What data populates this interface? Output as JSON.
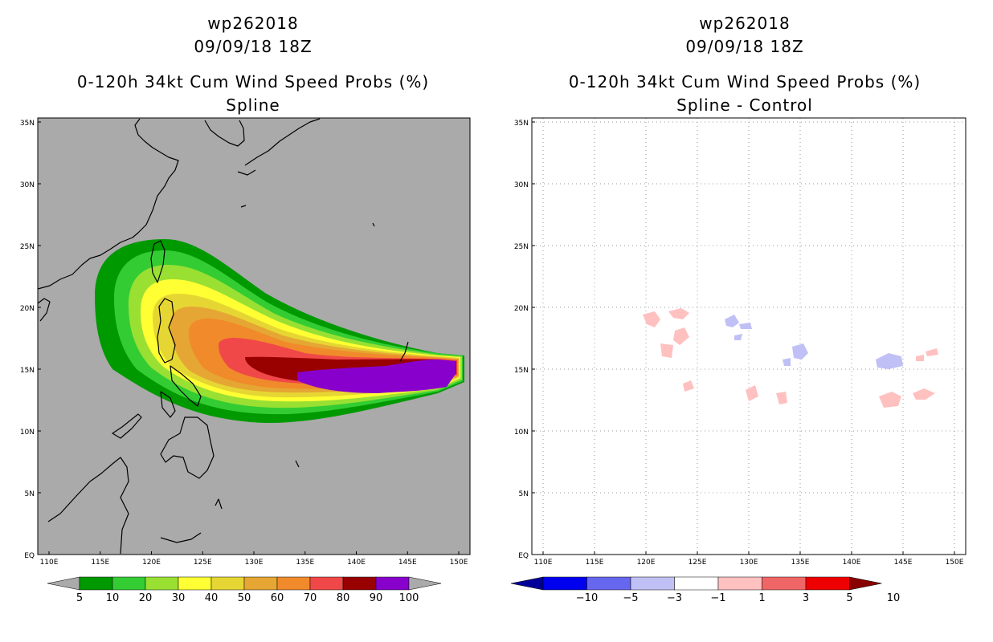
{
  "left": {
    "storm_id": "wp262018",
    "datetime": "09/09/18 18Z",
    "product": "0-120h 34kt Cum Wind Speed Probs (%)",
    "subtitle": "Spline",
    "legend_values": [
      "5",
      "10",
      "20",
      "30",
      "40",
      "50",
      "60",
      "70",
      "80",
      "90",
      "100"
    ],
    "legend_colors": [
      "#009900",
      "#33cc33",
      "#99e033",
      "#ffff33",
      "#e6d633",
      "#e6a633",
      "#f08a2a",
      "#f04848",
      "#990000",
      "#8800cc"
    ]
  },
  "right": {
    "storm_id": "wp262018",
    "datetime": "09/09/18 18Z",
    "product": "0-120h 34kt Cum Wind Speed Probs (%)",
    "subtitle": "Spline - Control",
    "legend_values": [
      "−10",
      "−5",
      "−3",
      "−1",
      "1",
      "3",
      "5",
      "10"
    ],
    "legend_colors": [
      "#000099",
      "#0000ee",
      "#6666ee",
      "#c0c0f6",
      "#ffffff",
      "#ffc0c0",
      "#f06666",
      "#ee0000"
    ]
  },
  "map": {
    "lon_labels": [
      "110E",
      "115E",
      "120E",
      "125E",
      "130E",
      "135E",
      "140E",
      "145E",
      "150E"
    ],
    "lat_labels": [
      "EQ",
      "5N",
      "10N",
      "15N",
      "20N",
      "25N",
      "30N",
      "35N"
    ],
    "background_color": "#aaaaaa"
  }
}
